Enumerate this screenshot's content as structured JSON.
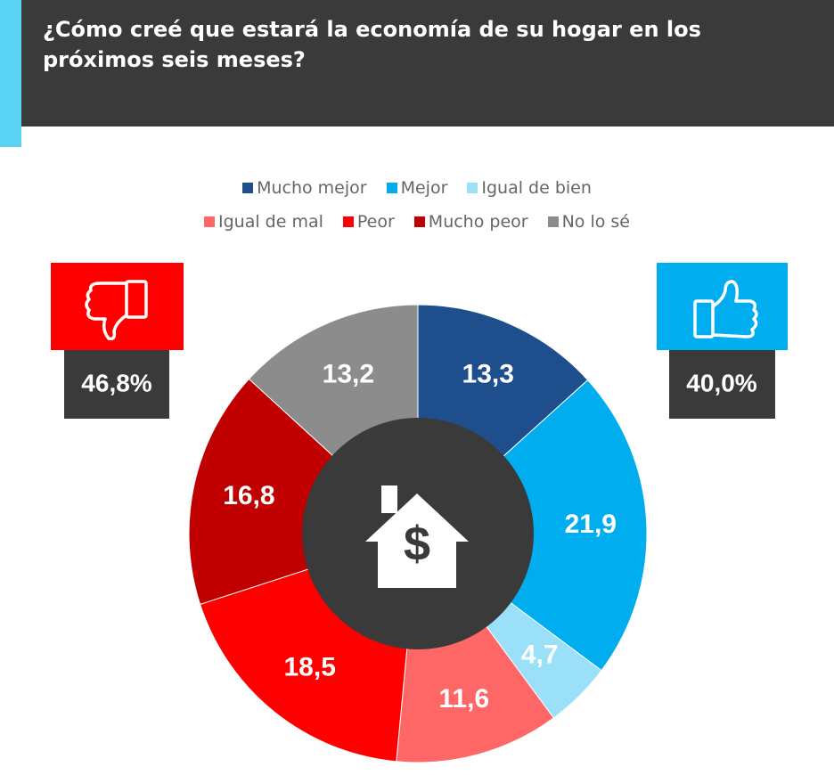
{
  "chart_data": {
    "type": "donut",
    "title": "¿Cómo creé que estará la economía de su hogar en los próximos seis meses?",
    "categories": [
      "Mucho mejor",
      "Mejor",
      "Igual de bien",
      "Igual de mal",
      "Peor",
      "Mucho peor",
      "No lo sé"
    ],
    "values": [
      13.3,
      21.9,
      4.7,
      11.6,
      18.5,
      16.8,
      13.2
    ],
    "value_labels": [
      "13,3",
      "21,9",
      "4,7",
      "11,6",
      "18,5",
      "16,8",
      "13,2"
    ],
    "colors": [
      "#1f4e8c",
      "#00aeef",
      "#99e0f8",
      "#ff6666",
      "#ff0000",
      "#c00000",
      "#8c8c8c"
    ],
    "negative_total": {
      "value": 46.8,
      "label": "46,8%"
    },
    "positive_total": {
      "value": 40.0,
      "label": "40,0%"
    }
  }
}
